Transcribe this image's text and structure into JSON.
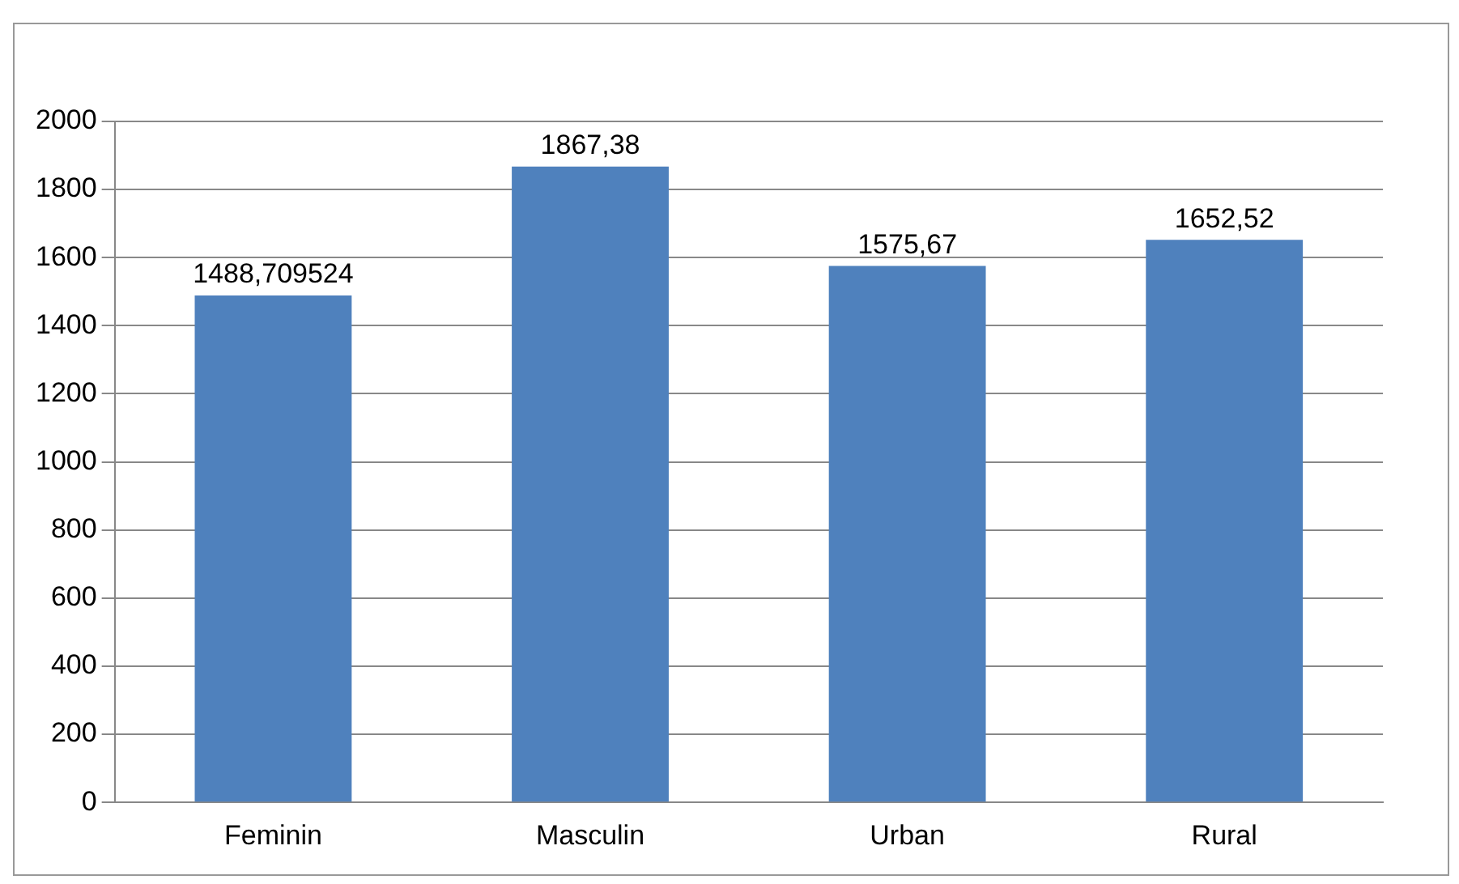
{
  "chart_data": {
    "type": "bar",
    "categories": [
      "Feminin",
      "Masculin",
      "Urban",
      "Rural"
    ],
    "values": [
      1488.709524,
      1867.38,
      1575.67,
      1652.52
    ],
    "value_labels": [
      "1488,709524",
      "1867,38",
      "1575,67",
      "1652,52"
    ],
    "color": "#4f81bd",
    "ylim": [
      0,
      2000
    ],
    "yticks": [
      0,
      200,
      400,
      600,
      800,
      1000,
      1200,
      1400,
      1600,
      1800,
      2000
    ],
    "grid": "y",
    "legend": false
  }
}
